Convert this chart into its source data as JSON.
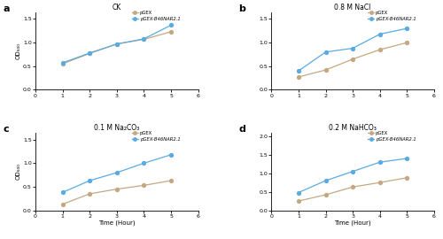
{
  "panels": [
    {
      "label": "a",
      "title": "CK",
      "x": [
        1,
        2,
        3,
        4,
        5
      ],
      "pGEX": [
        0.55,
        0.77,
        0.97,
        1.07,
        1.23
      ],
      "pGEX_NRT": [
        0.57,
        0.78,
        0.97,
        1.08,
        1.37
      ],
      "ylim": [
        0,
        1.65
      ],
      "yticks": [
        0.0,
        0.5,
        1.0,
        1.5
      ]
    },
    {
      "label": "b",
      "title": "0.8 M NaCl",
      "x": [
        1,
        2,
        3,
        4,
        5
      ],
      "pGEX": [
        0.27,
        0.42,
        0.65,
        0.85,
        1.0
      ],
      "pGEX_NRT": [
        0.4,
        0.8,
        0.88,
        1.18,
        1.3
      ],
      "ylim": [
        0,
        1.65
      ],
      "yticks": [
        0.0,
        0.5,
        1.0,
        1.5
      ]
    },
    {
      "label": "c",
      "title": "0.1 M Na₂CO₃",
      "x": [
        1,
        2,
        3,
        4,
        5
      ],
      "pGEX": [
        0.13,
        0.35,
        0.45,
        0.53,
        0.63
      ],
      "pGEX_NRT": [
        0.38,
        0.63,
        0.8,
        1.0,
        1.18
      ],
      "ylim": [
        0,
        1.65
      ],
      "yticks": [
        0.0,
        0.5,
        1.0,
        1.5
      ]
    },
    {
      "label": "d",
      "title": "0.2 M NaHCO₃",
      "x": [
        1,
        2,
        3,
        4,
        5
      ],
      "pGEX": [
        0.25,
        0.42,
        0.63,
        0.75,
        0.88
      ],
      "pGEX_NRT": [
        0.48,
        0.8,
        1.05,
        1.3,
        1.4
      ],
      "ylim": [
        0,
        2.1
      ],
      "yticks": [
        0.0,
        0.5,
        1.0,
        1.5,
        2.0
      ]
    }
  ],
  "color_pGEX": "#c4a882",
  "color_NRT": "#5aabe0",
  "xlabel": "Time (Hour)",
  "ylabel": "OD₆₀₀",
  "xlim": [
    0,
    6
  ],
  "xticks": [
    0,
    1,
    2,
    3,
    4,
    5,
    6
  ],
  "legend_pGEX": "pGEX",
  "legend_NRT": "pGEX-B46NAR2.1"
}
